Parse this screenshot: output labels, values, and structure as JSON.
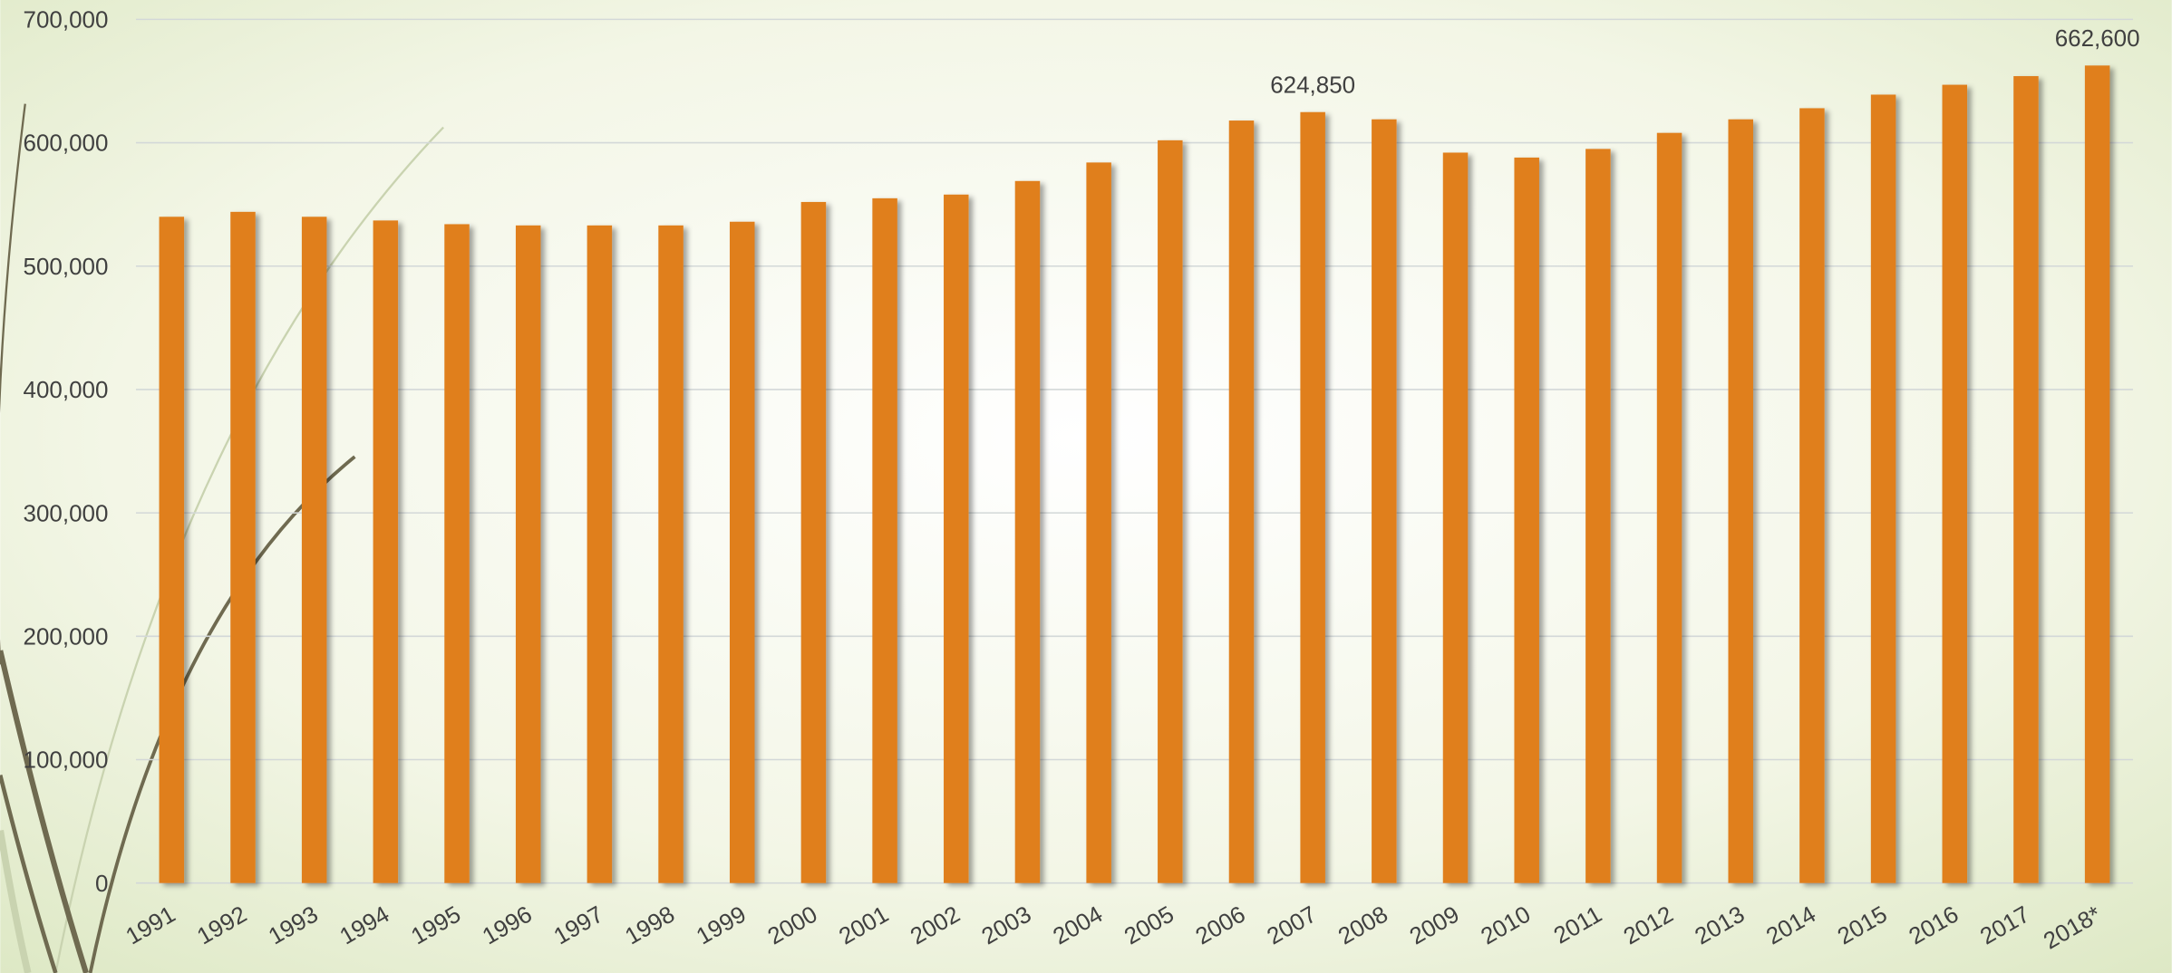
{
  "chart_data": {
    "type": "bar",
    "categories": [
      "1991",
      "1992",
      "1993",
      "1994",
      "1995",
      "1996",
      "1997",
      "1998",
      "1999",
      "2000",
      "2001",
      "2002",
      "2003",
      "2004",
      "2005",
      "2006",
      "2007",
      "2008",
      "2009",
      "2010",
      "2011",
      "2012",
      "2013",
      "2014",
      "2015",
      "2016",
      "2017",
      "2018*"
    ],
    "values": [
      540000,
      544000,
      540000,
      537000,
      534000,
      533000,
      533000,
      533000,
      536000,
      552000,
      555000,
      558000,
      569000,
      584000,
      602000,
      618000,
      624850,
      619000,
      592000,
      588000,
      595000,
      608000,
      619000,
      628000,
      639000,
      647000,
      654000,
      662600
    ],
    "value_labels": [
      null,
      null,
      null,
      null,
      null,
      null,
      null,
      null,
      null,
      null,
      null,
      null,
      null,
      null,
      null,
      null,
      "624,850",
      null,
      null,
      null,
      null,
      null,
      null,
      null,
      null,
      null,
      null,
      "662,600"
    ],
    "color": "#e07f1d",
    "ylim": [
      0,
      700000
    ],
    "yticks": [
      0,
      {
        "value": 100000,
        "label": "100,000"
      },
      {
        "value": 200000,
        "label": "200,000"
      },
      {
        "value": 300000,
        "label": "300,000"
      },
      {
        "value": 400000,
        "label": "400,000"
      },
      {
        "value": 500000,
        "label": "500,000"
      },
      {
        "value": 600000,
        "label": "600,000"
      },
      {
        "value": 700000,
        "label": "700,000"
      }
    ],
    "grid": true
  }
}
